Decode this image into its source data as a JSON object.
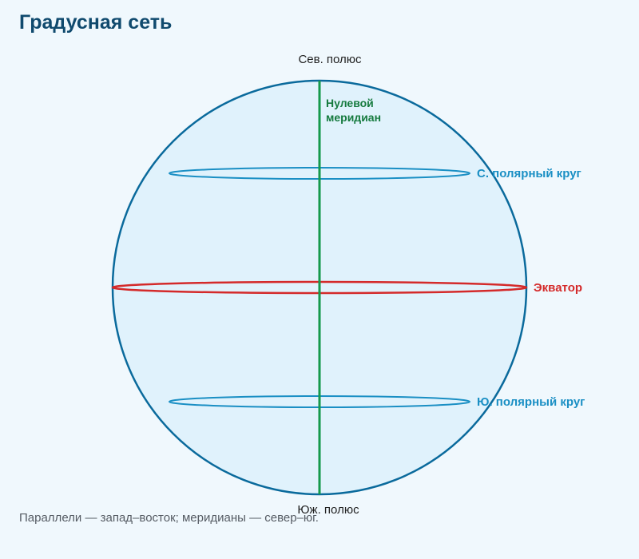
{
  "title": "Градусная сеть",
  "labels": {
    "north_pole": "Сев. полюс",
    "south_pole": "Юж. полюс",
    "prime_meridian_line1": "Нулевой",
    "prime_meridian_line2": "меридиан",
    "arctic_circle": "С. полярный круг",
    "equator": "Экватор",
    "antarctic_circle": "Ю. полярный круг"
  },
  "caption": "Параллели — запад–восток; меридианы — север–юг.",
  "colors": {
    "title": "#104a6e",
    "globe_fill": "#e0f2fc",
    "globe_stroke": "#0a6a9c",
    "meridian": "#159a4c",
    "equator": "#d42a2a",
    "polar_circles": "#1a8fc4",
    "caption": "#555b63",
    "background": "#f0f8fd"
  }
}
